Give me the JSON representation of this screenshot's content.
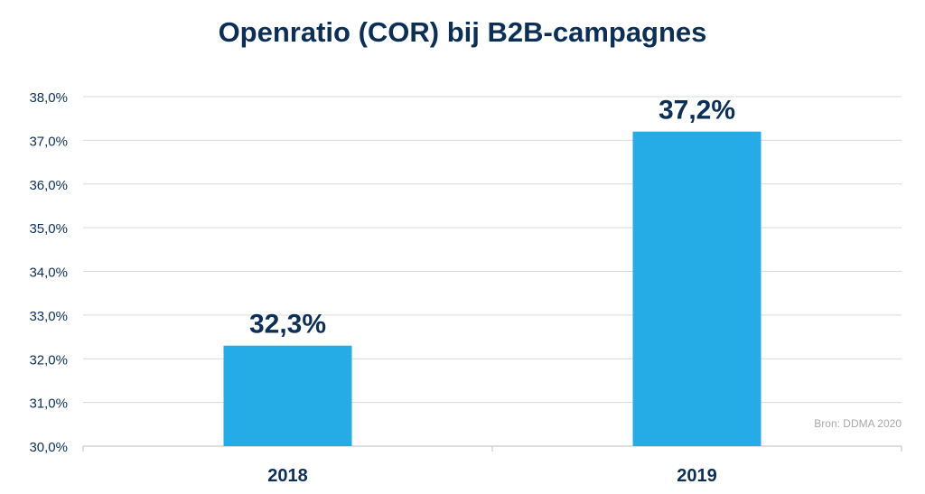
{
  "chart_data": {
    "type": "bar",
    "title": "Openratio (COR) bij B2B-campagnes",
    "categories": [
      "2018",
      "2019"
    ],
    "values": [
      32.3,
      37.2
    ],
    "data_labels": [
      "32,3%",
      "37,2%"
    ],
    "y_ticks": [
      30,
      31,
      32,
      33,
      34,
      35,
      36,
      37,
      38
    ],
    "y_tick_labels": [
      "30,0%",
      "31,0%",
      "32,0%",
      "33,0%",
      "34,0%",
      "35,0%",
      "36,0%",
      "37,0%",
      "38,0%"
    ],
    "ylim": [
      30,
      38
    ],
    "xlabel": "",
    "ylabel": "",
    "grid": true,
    "legend": "none",
    "bar_color": "#25ace6",
    "label_color": "#0b2f57",
    "source": "Bron: DDMA 2020"
  }
}
